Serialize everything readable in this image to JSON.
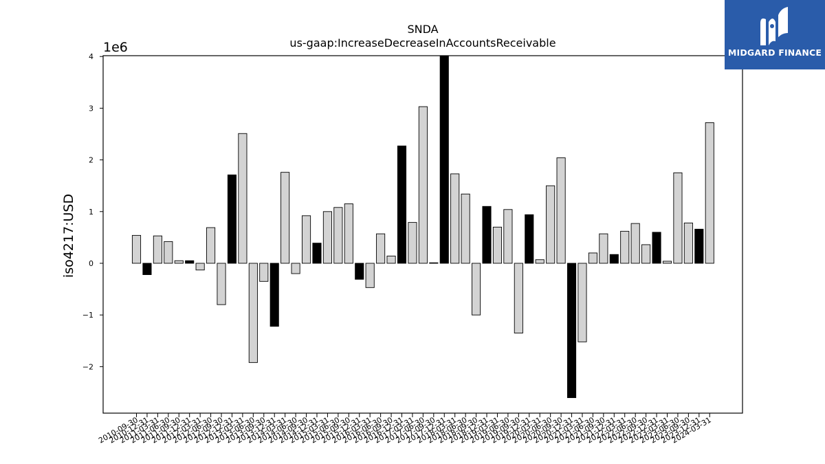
{
  "brand": {
    "name": "MIDGARD FINANCE",
    "color": "#2a5caa"
  },
  "chart_data": {
    "type": "bar",
    "title": "SNDA",
    "subtitle": "us-gaap:IncreaseDecreaseInAccountsReceivable",
    "ylabel": "iso4217:USD",
    "xlabel": "",
    "y_multiplier_label": "1e6",
    "ylim": [
      -2.95,
      4.0
    ],
    "y_ticks": [
      -2,
      -1,
      0,
      1,
      2,
      3,
      4
    ],
    "y_tick_labels": [
      "−2",
      "−1",
      "0",
      "1",
      "2",
      "3",
      "4"
    ],
    "grid": false,
    "bar_fill_colors": {
      "light": "#d3d3d3",
      "dark": "#000000"
    },
    "x_tick_labels": [
      "2010-09-30",
      "2010-12-31",
      "2011-03-31",
      "2011-06-30",
      "2011-09-30",
      "2011-12-31",
      "2012-03-31",
      "2012-06-30",
      "2012-09-30",
      "2012-12-31",
      "2013-03-31",
      "2013-06-30",
      "2013-09-30",
      "2013-12-31",
      "2014-03-31",
      "2014-06-30",
      "2014-09-30",
      "2014-12-31",
      "2015-03-31",
      "2015-06-30",
      "2015-09-30",
      "2015-12-31",
      "2016-03-31",
      "2016-06-30",
      "2016-09-30",
      "2016-12-31",
      "2017-03-31",
      "2017-06-30",
      "2017-09-30",
      "2017-12-31",
      "2018-03-31",
      "2018-06-30",
      "2018-09-30",
      "2018-12-31",
      "2019-03-31",
      "2019-06-30",
      "2019-09-30",
      "2019-12-31",
      "2020-03-31",
      "2020-06-30",
      "2020-09-30",
      "2020-12-31",
      "2021-03-31",
      "2021-06-30",
      "2021-09-30",
      "2021-12-31",
      "2022-03-31",
      "2022-06-30",
      "2022-09-30",
      "2022-12-31",
      "2023-03-31",
      "2023-06-30",
      "2023-09-30",
      "2023-12-31",
      "2024-03-31"
    ],
    "values": [
      0.54,
      -0.22,
      0.53,
      0.42,
      0.05,
      0.05,
      -0.13,
      0.69,
      -0.8,
      1.71,
      2.51,
      -1.92,
      -0.35,
      -1.22,
      1.76,
      -0.2,
      0.92,
      0.39,
      1.0,
      1.08,
      1.15,
      -0.31,
      -0.47,
      0.57,
      0.14,
      2.27,
      0.79,
      3.03,
      0.01,
      4.05,
      1.73,
      1.34,
      -1.0,
      1.1,
      0.7,
      1.04,
      -1.35,
      0.94,
      0.07,
      1.5,
      2.04,
      -2.6,
      -1.52,
      0.2,
      0.57,
      0.17,
      0.62,
      0.77,
      0.36,
      0.6,
      0.04,
      1.75,
      0.78,
      0.66,
      2.72
    ],
    "dark_bars": [
      false,
      true,
      false,
      false,
      false,
      true,
      false,
      false,
      false,
      true,
      false,
      false,
      false,
      true,
      false,
      false,
      false,
      true,
      false,
      false,
      false,
      true,
      false,
      false,
      false,
      true,
      false,
      false,
      true,
      true,
      false,
      false,
      false,
      true,
      false,
      false,
      false,
      true,
      false,
      false,
      false,
      true,
      false,
      false,
      false,
      true,
      false,
      false,
      false,
      true,
      false,
      false,
      false,
      true,
      false
    ]
  }
}
